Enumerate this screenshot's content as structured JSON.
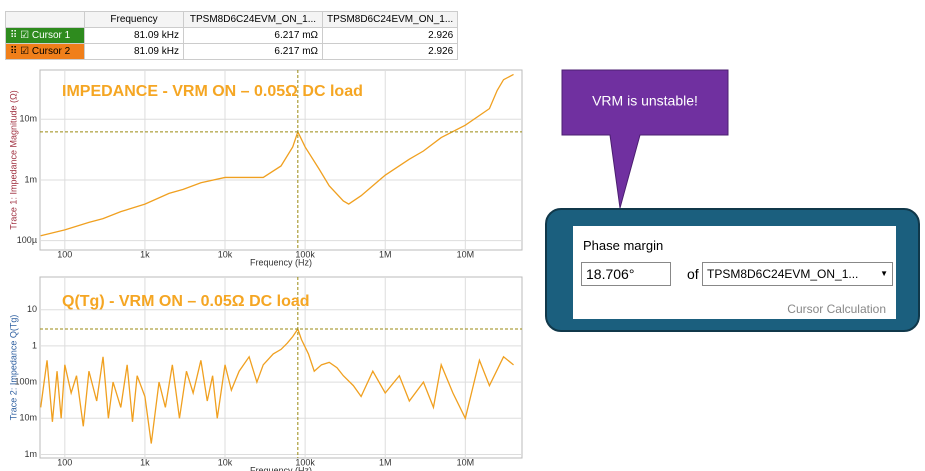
{
  "table": {
    "headers": [
      "Frequency",
      "TPSM8D6C24EVM_ON_1...",
      "TPSM8D6C24EVM_ON_1..."
    ],
    "rows": [
      [
        "Cursor 1",
        "81.09 kHz",
        "6.217 mΩ",
        "2.926"
      ],
      [
        "Cursor 2",
        "81.09 kHz",
        "6.217 mΩ",
        "2.926"
      ]
    ]
  },
  "chart_data": [
    {
      "type": "line",
      "annotation": "IMPEDANCE - VRM ON – 0.05Ω DC load",
      "xlabel": "Frequency (Hz)",
      "ylabel": "Trace 1: Impedance Magnitude (Ω)",
      "log_x": true,
      "log_y": true,
      "grid": true,
      "xlim": [
        49,
        51000000
      ],
      "ylim": [
        7e-05,
        0.065
      ],
      "xticks": [
        {
          "value": 100,
          "label": "100"
        },
        {
          "value": 1000,
          "label": "1k"
        },
        {
          "value": 10000,
          "label": "10k"
        },
        {
          "value": 100000,
          "label": "100k"
        },
        {
          "value": 1000000,
          "label": "1M"
        },
        {
          "value": 10000000,
          "label": "10M"
        }
      ],
      "yticks": [
        {
          "value": 0.0001,
          "label": "100µ"
        },
        {
          "value": 0.001,
          "label": "1m"
        },
        {
          "value": 0.01,
          "label": "10m"
        }
      ],
      "x": [
        50,
        100,
        200,
        300,
        500,
        1000,
        2000,
        3000,
        5000,
        10000,
        20000,
        30000,
        50000,
        70000,
        81090,
        100000,
        150000,
        200000,
        300000,
        350000,
        500000,
        1000000,
        2000000,
        3000000,
        5000000,
        10000000,
        20000000,
        25000000,
        30000000,
        40000000
      ],
      "series": [
        {
          "color": "#f0a020",
          "values": [
            0.00012,
            0.00015,
            0.0002,
            0.00023,
            0.0003,
            0.0004,
            0.0006,
            0.0007,
            0.0009,
            0.0011,
            0.0011,
            0.0011,
            0.0017,
            0.0035,
            0.006217,
            0.0035,
            0.0015,
            0.0008,
            0.00045,
            0.0004,
            0.00055,
            0.0012,
            0.0022,
            0.003,
            0.005,
            0.008,
            0.015,
            0.03,
            0.045,
            0.055
          ]
        }
      ],
      "cursor": {
        "x": 81090,
        "y": 0.006217
      }
    },
    {
      "type": "line",
      "annotation": "Q(Tg) - VRM ON – 0.05Ω DC load",
      "xlabel": "Frequency (Hz)",
      "ylabel": "Trace 2: Impedance Q(Tg)",
      "log_x": true,
      "log_y": true,
      "grid": true,
      "xlim": [
        49,
        51000000
      ],
      "ylim": [
        0.0008,
        80
      ],
      "xticks": [
        {
          "value": 100,
          "label": "100"
        },
        {
          "value": 1000,
          "label": "1k"
        },
        {
          "value": 10000,
          "label": "10k"
        },
        {
          "value": 100000,
          "label": "100k"
        },
        {
          "value": 1000000,
          "label": "1M"
        },
        {
          "value": 10000000,
          "label": "10M"
        }
      ],
      "yticks": [
        {
          "value": 0.001,
          "label": "1m"
        },
        {
          "value": 0.01,
          "label": "10m"
        },
        {
          "value": 0.1,
          "label": "100m"
        },
        1,
        10
      ],
      "x": [
        50,
        60,
        70,
        80,
        90,
        100,
        120,
        140,
        170,
        200,
        250,
        300,
        350,
        400,
        500,
        600,
        700,
        800,
        1000,
        1200,
        1500,
        1800,
        2200,
        2700,
        3300,
        4000,
        5000,
        6000,
        7000,
        8000,
        10000,
        12000,
        15000,
        20000,
        25000,
        30000,
        40000,
        50000,
        60000,
        70000,
        81090,
        90000,
        110000,
        130000,
        160000,
        200000,
        250000,
        300000,
        400000,
        500000,
        700000,
        1000000,
        1500000,
        2000000,
        3000000,
        4000000,
        5000000,
        7000000,
        10000000,
        15000000,
        20000000,
        30000000,
        40000000
      ],
      "series": [
        {
          "color": "#f0a020",
          "values": [
            0.02,
            0.4,
            0.008,
            0.2,
            0.01,
            0.3,
            0.05,
            0.15,
            0.006,
            0.2,
            0.03,
            0.5,
            0.01,
            0.1,
            0.02,
            0.3,
            0.008,
            0.15,
            0.04,
            0.002,
            0.1,
            0.02,
            0.3,
            0.01,
            0.2,
            0.05,
            0.4,
            0.03,
            0.15,
            0.01,
            0.3,
            0.06,
            0.2,
            0.5,
            0.1,
            0.3,
            0.6,
            0.8,
            1.2,
            1.8,
            2.926,
            1.5,
            0.6,
            0.2,
            0.3,
            0.35,
            0.25,
            0.15,
            0.08,
            0.04,
            0.2,
            0.05,
            0.15,
            0.03,
            0.1,
            0.02,
            0.3,
            0.05,
            0.01,
            0.4,
            0.08,
            0.5,
            0.3
          ]
        }
      ],
      "cursor": {
        "x": 81090,
        "y": 2.926
      }
    }
  ],
  "callout": "VRM is unstable!",
  "panel": {
    "label": "Phase margin",
    "value": "18.706°",
    "of": "of",
    "trace": "TPSM8D6C24EVM_ON_1...",
    "footer": "Cursor Calculation"
  }
}
